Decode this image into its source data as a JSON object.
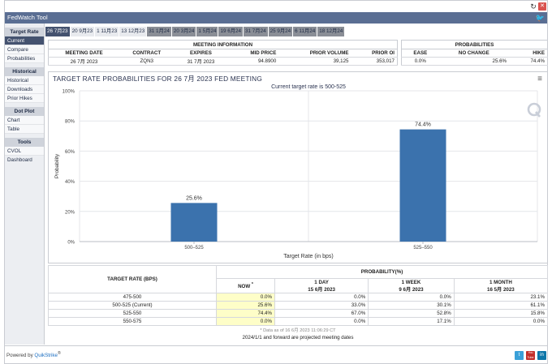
{
  "app": {
    "title": "FedWatch Tool",
    "powered_by": "Powered by",
    "powered_brand": "QuikStrike",
    "powered_mark": "®"
  },
  "icons": {
    "refresh": "refresh-icon",
    "close": "close-icon",
    "twitter": "twitter-icon",
    "menu": "hamburger-menu-icon",
    "quikstrike_watermark": "quikstrike-q-icon",
    "youtube": "youtube-icon",
    "linkedin": "linkedin-icon"
  },
  "sidebar": {
    "sections": [
      {
        "title": "Target Rate",
        "items": [
          "Current",
          "Compare",
          "Probabilities"
        ]
      },
      {
        "title": "Historical",
        "items": [
          "Historical",
          "Downloads",
          "Prior Hikes"
        ]
      },
      {
        "title": "Dot Plot",
        "items": [
          "Chart",
          "Table"
        ]
      },
      {
        "title": "Tools",
        "items": [
          "CVOL Dashboard"
        ]
      }
    ]
  },
  "tabs": [
    "26 7月23",
    "20 9月23",
    "1 11月23",
    "13 12月23",
    "31 1月24",
    "20 3月24",
    "1 5月24",
    "19 6月24",
    "31 7月24",
    "25 9月24",
    "6 11月24",
    "18 12月24"
  ],
  "meeting_info": {
    "caption": "MEETING INFORMATION",
    "headers": [
      "MEETING DATE",
      "CONTRACT",
      "EXPIRES",
      "MID PRICE",
      "PRIOR VOLUME",
      "PRIOR OI"
    ],
    "row": [
      "26 7月 2023",
      "ZQN3",
      "31 7月 2023",
      "94.8900",
      "39,125",
      "353,017"
    ]
  },
  "probabilities": {
    "caption": "PROBABILITIES",
    "headers": [
      "EASE",
      "NO CHANGE",
      "HIKE"
    ],
    "row": [
      "0.0%",
      "25.6%",
      "74.4%"
    ]
  },
  "chart": {
    "title": "TARGET RATE PROBABILITIES FOR 26 7月 2023 FED MEETING",
    "subtitle": "Current target rate is 500-525"
  },
  "chart_data": {
    "type": "bar",
    "title": "TARGET RATE PROBABILITIES FOR 26 7月 2023 FED MEETING",
    "subtitle": "Current target rate is 500-525",
    "categories": [
      "500–525",
      "525–550"
    ],
    "values": [
      25.6,
      74.4
    ],
    "data_labels": [
      "25.6%",
      "74.4%"
    ],
    "xlabel": "Target Rate (in bps)",
    "ylabel": "Probability",
    "ylim": [
      0,
      100
    ],
    "yticks": [
      "0%",
      "20%",
      "40%",
      "60%",
      "80%",
      "100%"
    ],
    "bar_color": "#3b72ad",
    "grid": true
  },
  "prob_table": {
    "rate_header": "TARGET RATE (BPS)",
    "prob_header": "PROBABILITY(%)",
    "col_headers": [
      {
        "line1": "NOW",
        "line2": "*"
      },
      {
        "line1": "1 DAY",
        "line2": "15 6月 2023"
      },
      {
        "line1": "1 WEEK",
        "line2": "9 6月 2023"
      },
      {
        "line1": "1 MONTH",
        "line2": "16 5月 2023"
      }
    ],
    "rows": [
      [
        "475-500",
        "0.0%",
        "0.0%",
        "0.0%",
        "23.1%"
      ],
      [
        "500-525 (Current)",
        "25.6%",
        "33.0%",
        "30.1%",
        "61.1%"
      ],
      [
        "525-550",
        "74.4%",
        "67.0%",
        "52.8%",
        "15.8%"
      ],
      [
        "550-575",
        "0.0%",
        "0.0%",
        "17.1%",
        "0.0%"
      ]
    ],
    "footnote": "* Data as of 16 6月 2023 11:06:29 CT",
    "projected_note": "2024/1/1 and forward are projected meeting dates"
  },
  "social": {
    "twitter": "t",
    "youtube": "You Tube",
    "linkedin": "in"
  },
  "colors": {
    "header": "#5a6e93",
    "active": "#44526f",
    "bar": "#3b72ad",
    "now_highlight": "#fefec8"
  }
}
